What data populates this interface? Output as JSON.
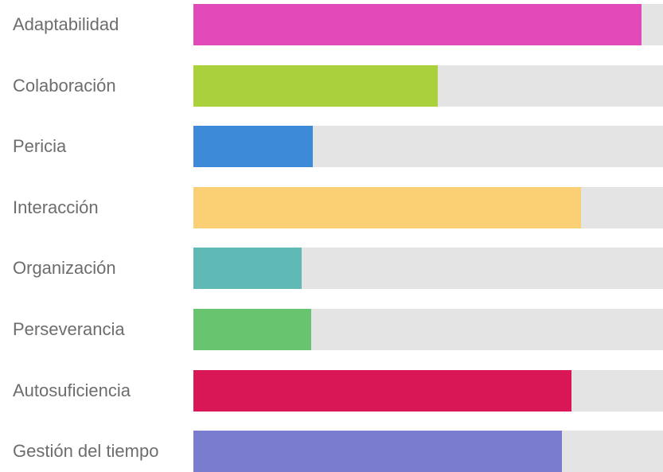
{
  "chart_data": {
    "type": "bar",
    "orientation": "horizontal",
    "xlim": [
      0,
      100
    ],
    "categories": [
      "Adaptabilidad",
      "Colaboración",
      "Pericia",
      "Interacción",
      "Organización",
      "Perseverancia",
      "Autosuficiencia",
      "Gestión del tiempo"
    ],
    "values": [
      95.5,
      52,
      25.5,
      82.5,
      23,
      25,
      80.5,
      78.5
    ],
    "colors": [
      "#e24ab9",
      "#aad03c",
      "#3d8ad8",
      "#fbd075",
      "#5fbab6",
      "#68c46e",
      "#da1756",
      "#7a7ccf"
    ],
    "track_color": "#e4e4e4",
    "grid": false,
    "legend": "none"
  }
}
